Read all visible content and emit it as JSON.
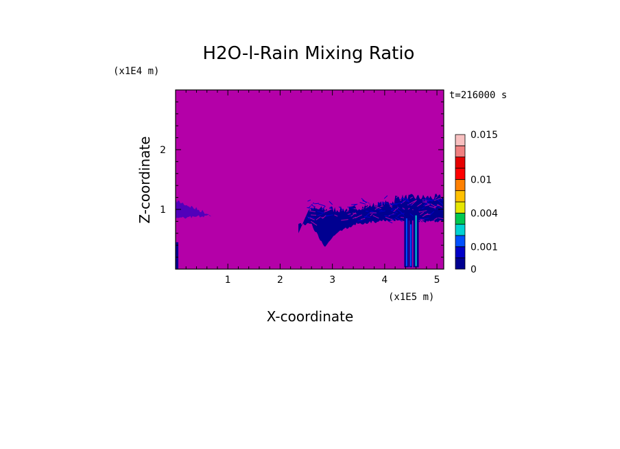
{
  "chart_data": {
    "type": "heatmap",
    "title": "H2O-l-Rain Mixing Ratio",
    "xlabel": "X-coordinate",
    "ylabel": "Z-coordinate",
    "x_unit": "(x1E5 m)",
    "y_unit": "(x1E4 m)",
    "time_label": "t=216000 s",
    "xlim": [
      0,
      5.13
    ],
    "ylim": [
      0,
      3.0
    ],
    "x_ticks": [
      "1",
      "2",
      "3",
      "4",
      "5"
    ],
    "y_ticks": [
      "1",
      "2"
    ],
    "background_color": "#b400a8",
    "colorbar": {
      "levels": [
        0,
        0.0005,
        0.001,
        0.002,
        0.003,
        0.004,
        0.006,
        0.008,
        0.01,
        0.012,
        0.014,
        0.015
      ],
      "colors": [
        "#000090",
        "#0000c8",
        "#0050ff",
        "#00d2d2",
        "#00c850",
        "#e6e600",
        "#ffc000",
        "#ff8000",
        "#ff0000",
        "#e60000",
        "#f08080",
        "#f8c0c0"
      ],
      "labels": [
        {
          "value": 0,
          "text": "0"
        },
        {
          "value": 0.001,
          "text": "0.001"
        },
        {
          "value": 0.004,
          "text": "0.004"
        },
        {
          "value": 0.01,
          "text": "0.01"
        },
        {
          "value": 0.015,
          "text": "0.015"
        }
      ]
    },
    "rain_regions": [
      {
        "x": [
          0.0,
          0.7
        ],
        "z_top": [
          1.15,
          0.9
        ]
      },
      {
        "x": [
          2.4,
          3.3
        ],
        "z_top": [
          1.0,
          0.35
        ]
      },
      {
        "x": [
          3.3,
          5.13
        ],
        "z_top": [
          1.2,
          0.75
        ]
      },
      {
        "x": [
          4.35,
          4.7
        ],
        "z_top": [
          1.05,
          0.05
        ]
      }
    ]
  }
}
